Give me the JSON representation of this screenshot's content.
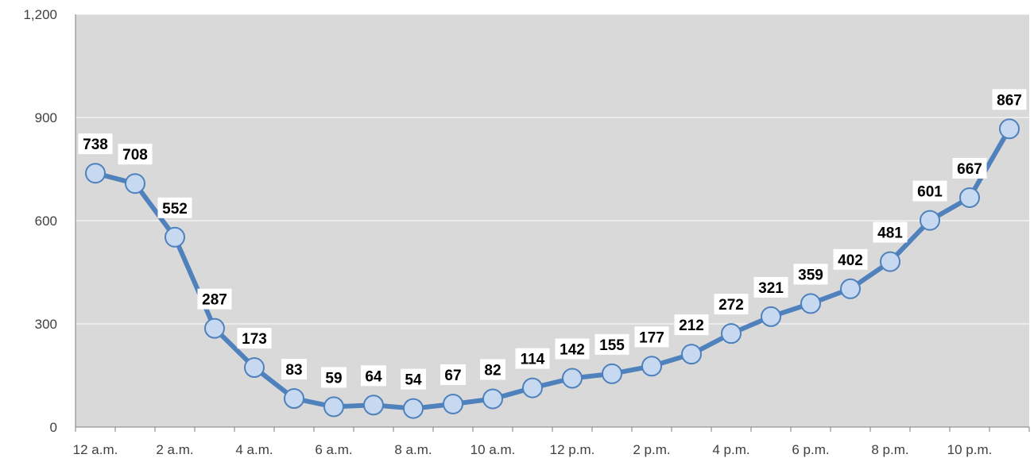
{
  "chart_data": {
    "type": "line",
    "title": "",
    "xlabel": "",
    "ylabel": "",
    "ylim": [
      0,
      1200
    ],
    "y_ticks": [
      0,
      300,
      600,
      900,
      1200
    ],
    "y_tick_labels": [
      "0",
      "300",
      "600",
      "900",
      "1,200"
    ],
    "categories": [
      "12 a.m.",
      "1 a.m.",
      "2 a.m.",
      "3 a.m.",
      "4 a.m.",
      "5 a.m.",
      "6 a.m.",
      "7 a.m.",
      "8 a.m.",
      "9 a.m.",
      "10 a.m.",
      "11 a.m.",
      "12 p.m.",
      "1 p.m.",
      "2 p.m.",
      "3 p.m.",
      "4 p.m.",
      "5 p.m.",
      "6 p.m.",
      "7 p.m.",
      "8 p.m.",
      "9 p.m.",
      "10 p.m.",
      "11 p.m."
    ],
    "shown_tick_labels": [
      "12 a.m.",
      "2 a.m.",
      "4 a.m.",
      "6 a.m.",
      "8 a.m.",
      "10 a.m.",
      "12 p.m.",
      "2 p.m.",
      "4 p.m.",
      "6 p.m.",
      "8 p.m.",
      "10 p.m."
    ],
    "series": [
      {
        "values": [
          738,
          708,
          552,
          287,
          173,
          83,
          59,
          64,
          54,
          67,
          82,
          114,
          142,
          155,
          177,
          212,
          272,
          321,
          359,
          402,
          481,
          601,
          667,
          867
        ]
      }
    ],
    "grid": true,
    "legend": "none",
    "colors": {
      "plot_background": "#d9d9d9",
      "gridline": "#ffffff",
      "line": "#4f81bd",
      "marker_fill": "#c6d9f1",
      "marker_stroke": "#4f81bd",
      "axis": "#7f7f7f"
    }
  }
}
